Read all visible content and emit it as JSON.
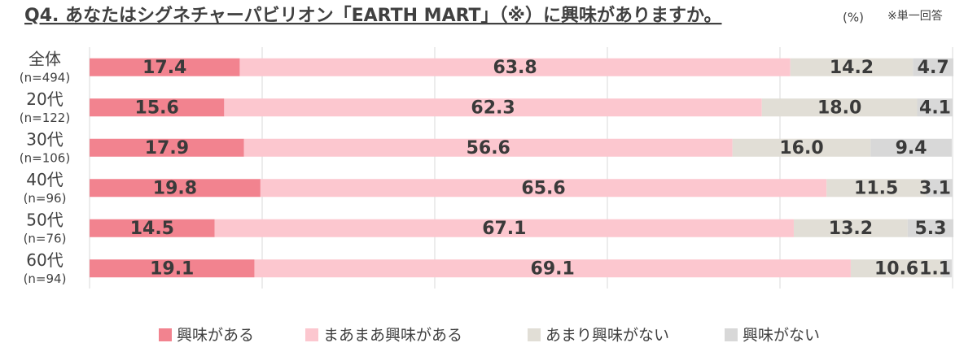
{
  "chart_data": {
    "type": "stacked-bar-horizontal",
    "title": "Q4. あなたはシグネチャーパビリオン「EARTH MART」（※）に興味がありますか。",
    "unit_label": "(%)",
    "note": "※単一回答",
    "categories": [
      "全体",
      "20代",
      "30代",
      "40代",
      "50代",
      "60代"
    ],
    "sample_sizes": [
      "(n=494)",
      "(n=122)",
      "(n=106)",
      "(n=96)",
      "(n=76)",
      "(n=94)"
    ],
    "series": [
      {
        "name": "興味がある",
        "color": "#f2838f",
        "values": [
          17.4,
          15.6,
          17.9,
          19.8,
          14.5,
          19.1
        ]
      },
      {
        "name": "まあまあ興味がある",
        "color": "#fcc7cf",
        "values": [
          63.8,
          62.3,
          56.6,
          65.6,
          67.1,
          69.1
        ]
      },
      {
        "name": "あまり興味がない",
        "color": "#e1ded6",
        "values": [
          14.2,
          18.0,
          16.0,
          11.5,
          13.2,
          10.6
        ],
        "value_labels": [
          "14.2",
          "18.0",
          "16.0",
          "11.5",
          "13.2",
          "10.6"
        ]
      },
      {
        "name": "興味がない",
        "color": "#d8d8d8",
        "values": [
          4.7,
          4.1,
          9.4,
          3.1,
          5.3,
          1.1
        ]
      }
    ],
    "xlim": [
      0,
      100
    ],
    "xticks": [
      0,
      20,
      40,
      60,
      80,
      100
    ],
    "grid": true,
    "legend": "bottom"
  }
}
